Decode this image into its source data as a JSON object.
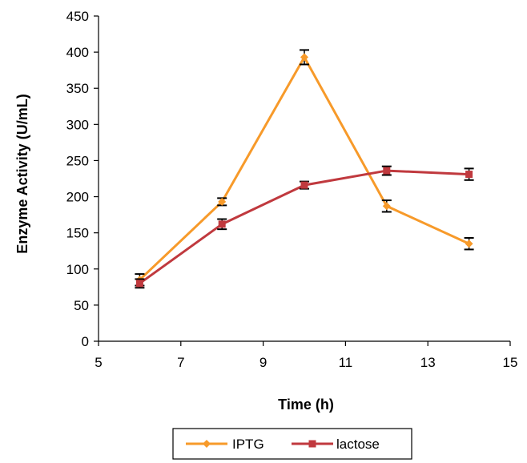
{
  "chart_data": {
    "type": "line",
    "title": "",
    "xlabel": "Time (h)",
    "ylabel": "Enzyme Activity (U/mL)",
    "xlim": [
      5,
      15
    ],
    "ylim": [
      0,
      450
    ],
    "x_ticks": [
      5,
      7,
      9,
      11,
      13,
      15
    ],
    "y_ticks": [
      0,
      50,
      100,
      150,
      200,
      250,
      300,
      350,
      400,
      450
    ],
    "grid": false,
    "legend_position": "bottom-center",
    "series": [
      {
        "name": "IPTG",
        "color": "#F79A2A",
        "marker": "diamond",
        "x": [
          6,
          8,
          10,
          12,
          14
        ],
        "y": [
          85,
          193,
          393,
          187,
          135
        ],
        "error": [
          8,
          5,
          10,
          8,
          8
        ]
      },
      {
        "name": "lactose",
        "color": "#C0393E",
        "marker": "square",
        "x": [
          6,
          8,
          10,
          12,
          14
        ],
        "y": [
          80,
          162,
          216,
          236,
          231
        ],
        "error": [
          6,
          7,
          5,
          6,
          8
        ]
      }
    ]
  }
}
